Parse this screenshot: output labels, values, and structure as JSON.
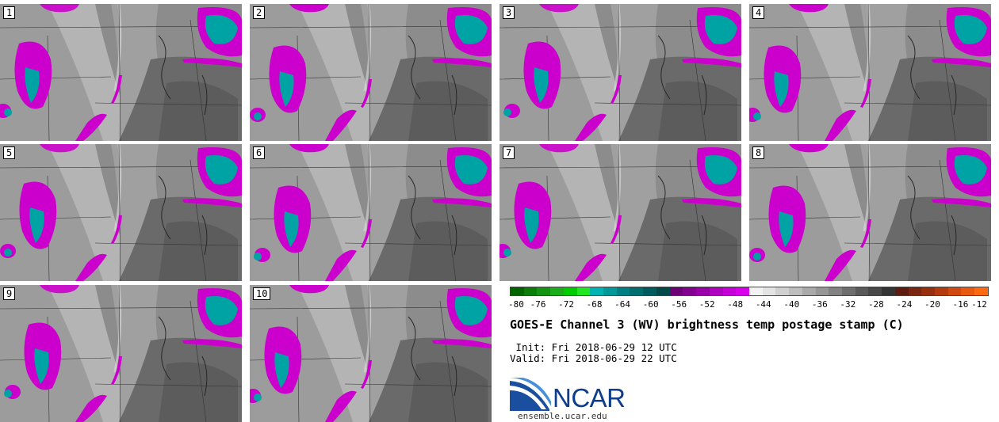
{
  "panels": [
    {
      "label": "1"
    },
    {
      "label": "2"
    },
    {
      "label": "3"
    },
    {
      "label": "4"
    },
    {
      "label": "5"
    },
    {
      "label": "6"
    },
    {
      "label": "7"
    },
    {
      "label": "8"
    },
    {
      "label": "9"
    },
    {
      "label": "10"
    }
  ],
  "colorbar": {
    "colors": [
      "#006400",
      "#0a7d0a",
      "#139413",
      "#1cad1c",
      "#00cc00",
      "#22e622",
      "#00b3b3",
      "#009999",
      "#008080",
      "#006e6e",
      "#005c5c",
      "#004a4a",
      "#6e0077",
      "#840090",
      "#9a00a8",
      "#b000c0",
      "#c400d6",
      "#d800ea",
      "#f2f2f2",
      "#e3e3e3",
      "#d0d0d0",
      "#bdbdbd",
      "#a9a9a9",
      "#969696",
      "#828282",
      "#6e6e6e",
      "#5a5a5a",
      "#474747",
      "#343434",
      "#5c1c10",
      "#7a2610",
      "#983010",
      "#b43a10",
      "#cf4a10",
      "#e85a10",
      "#ff6a10"
    ],
    "ticks": [
      "-80",
      "-76",
      "-72",
      "-68",
      "-64",
      "-60",
      "-56",
      "-52",
      "-48",
      "-44",
      "-40",
      "-36",
      "-32",
      "-28",
      "-24",
      "-20",
      "-16",
      "-12"
    ]
  },
  "title": "GOES-E Channel 3 (WV) brightness temp postage stamp (C)",
  "init": " Init: Fri 2018-06-29 12 UTC",
  "valid": "Valid: Fri 2018-06-29 22 UTC",
  "logo_text": "NCAR",
  "url": "ensemble.ucar.edu",
  "colors": {
    "magenta": "#cc00cc",
    "teal": "#00a3a3",
    "map_gray": "#8a8a8a"
  }
}
